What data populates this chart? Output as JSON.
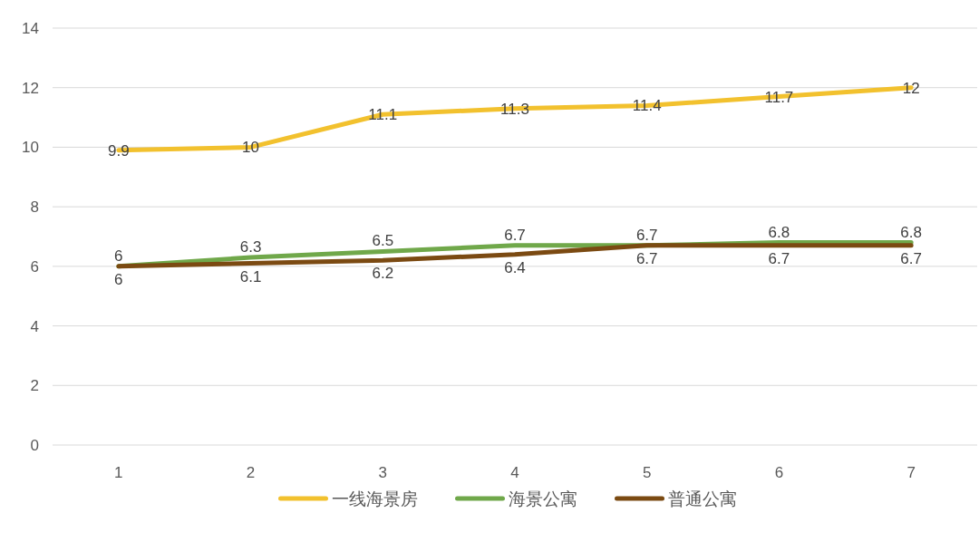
{
  "chart_data": {
    "type": "line",
    "categories": [
      "1",
      "2",
      "3",
      "4",
      "5",
      "6",
      "7"
    ],
    "series": [
      {
        "name": "一线海景房",
        "color": "#f2c12e",
        "values": [
          9.9,
          10,
          11.1,
          11.3,
          11.4,
          11.7,
          12
        ]
      },
      {
        "name": "海景公寓",
        "color": "#70a84a",
        "values": [
          6,
          6.3,
          6.5,
          6.7,
          6.7,
          6.8,
          6.8
        ]
      },
      {
        "name": "普通公寓",
        "color": "#7b4a12",
        "values": [
          6,
          6.1,
          6.2,
          6.4,
          6.7,
          6.7,
          6.7
        ]
      }
    ],
    "ylim": [
      0,
      14
    ],
    "yticks": [
      0,
      2,
      4,
      6,
      8,
      10,
      12,
      14
    ],
    "grid": "y",
    "legend": "bottom",
    "data_labels": true,
    "marker": "none",
    "line_style": "solid"
  }
}
